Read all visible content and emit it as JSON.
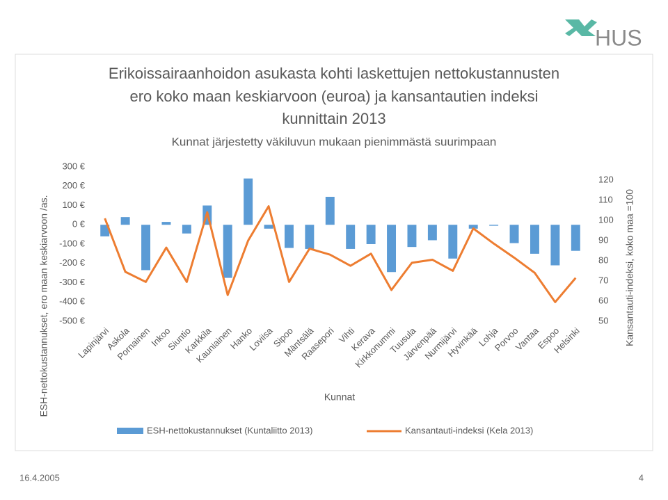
{
  "chart_data": {
    "type": "bar_line",
    "title": [
      "Erikoissairaanhoidon asukasta kohti laskettujen nettokustannusten",
      "ero koko maan keskiarvoon (euroa) ja kansantautien indeksi",
      "kunnittain 2013"
    ],
    "subtitle": "Kunnat järjestetty väkiluvun mukaan pienimmästä suurimpaan",
    "x_label": "Kunnat",
    "y_label": "ESH-nettokustannukset, ero maan keskiarvoon /as.",
    "y2_label": "Kansantauti-indeksi, koko maa =100",
    "categories": [
      "Lapinjärvi",
      "Askola",
      "Pornainen",
      "Inkoo",
      "Siuntio",
      "Karkkila",
      "Kauniainen",
      "Hanko",
      "Loviisa",
      "Sipoo",
      "Mäntsälä",
      "Raasepori",
      "Vihti",
      "Kerava",
      "Kirkkonummi",
      "Tuusula",
      "Järvenpää",
      "Nurmijärvi",
      "Hyvinkää",
      "Lohja",
      "Porvoo",
      "Vantaa",
      "Espoo",
      "Helsinki"
    ],
    "series": [
      {
        "name": "ESH-nettokustannukset (Kuntaliitto 2013)",
        "color": "#5b9bd5",
        "kind": "bar",
        "values": [
          -60,
          40,
          -235,
          15,
          -45,
          100,
          -275,
          240,
          -20,
          -120,
          -125,
          145,
          -125,
          -100,
          -245,
          -115,
          -80,
          -175,
          -20,
          -5,
          -95,
          -150,
          -210,
          -135
        ]
      },
      {
        "name": "Kansantauti-indeksi (Kela 2013)",
        "color": "#ed7d31",
        "kind": "line",
        "axis": "y2",
        "values": [
          101,
          74.5,
          69.5,
          86.5,
          69.5,
          104,
          63,
          90,
          107,
          69.5,
          86,
          83,
          77.5,
          83.5,
          65.5,
          79,
          80.5,
          75,
          96,
          88.5,
          81.5,
          74,
          59.5,
          71.5
        ]
      }
    ],
    "ylim": [
      -500,
      300
    ],
    "yticks": [
      {
        "value": 300,
        "label": "300 €"
      },
      {
        "value": 200,
        "label": "200 €"
      },
      {
        "value": 100,
        "label": "100 €"
      },
      {
        "value": 0,
        "label": "0 €"
      },
      {
        "value": -100,
        "label": "-100 €"
      },
      {
        "value": -200,
        "label": "-200 €"
      },
      {
        "value": -300,
        "label": "-300 €"
      },
      {
        "value": -400,
        "label": "-400 €"
      },
      {
        "value": -500,
        "label": "-500 €"
      }
    ],
    "y2lim": [
      50,
      126.5
    ],
    "y2ticks": [
      50,
      60,
      70,
      80,
      90,
      100,
      110,
      120
    ],
    "grid": false
  },
  "logo": "HUS",
  "footer": {
    "date": "16.4.2005",
    "page": "4"
  }
}
